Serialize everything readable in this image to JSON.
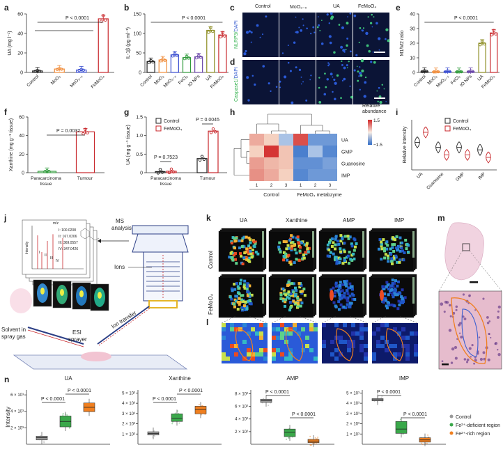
{
  "labels": {
    "a": "a",
    "b": "b",
    "c": "c",
    "d": "d",
    "e": "e",
    "f": "f",
    "g": "g",
    "h": "h",
    "i": "i",
    "j": "j",
    "k": "k",
    "l": "l",
    "m": "m",
    "n": "n"
  },
  "panel_a": {
    "ylabel": "UA (mg l⁻¹)",
    "p": "P < 0.0001",
    "cats": [
      "Control",
      "MoO₃",
      "MoO₃₋ₓ",
      "FeMoO₄"
    ],
    "yticks": [
      "0",
      "20",
      "40",
      "60"
    ],
    "values": [
      1.5,
      3.5,
      2.5,
      55
    ]
  },
  "panel_b": {
    "ylabel": "IL-1β (pg ml⁻¹)",
    "p": "P < 0.0001",
    "cats": [
      "Control",
      "MoO₃",
      "MoO₃₋ₓ",
      "FeCl₃",
      "IO NPs",
      "UA",
      "FeMoO₄"
    ],
    "yticks": [
      "0",
      "50",
      "100",
      "150"
    ],
    "values": [
      28,
      32,
      45,
      38,
      40,
      108,
      96
    ]
  },
  "panel_c": {
    "cols": [
      "Control",
      "MoO₃₋ₓ",
      "UA",
      "FeMoO₄"
    ],
    "ylabel_a": "NLRP3/",
    "ylabel_b": "DAPI"
  },
  "panel_d": {
    "ylabel_a": "Caspase1/",
    "ylabel_b": "DAPI"
  },
  "panel_e": {
    "ylabel": "M1/M2 ratio",
    "p": "P < 0.0001",
    "cats": [
      "Control",
      "MoO₃",
      "MoO₃₋ₓ",
      "FeCl₃",
      "IO NPs",
      "UA",
      "FeMoO₄"
    ],
    "yticks": [
      "0",
      "10",
      "20",
      "30",
      "40"
    ],
    "values": [
      0.8,
      0.6,
      0.7,
      0.6,
      0.7,
      20,
      27
    ]
  },
  "panel_f": {
    "ylabel": "Xanthine (mg g⁻¹ tissue)",
    "p": "P = 0.0032",
    "cats": [
      "Paracarcinoma tissue",
      "Tumour"
    ],
    "yticks": [
      "0",
      "20",
      "40",
      "60"
    ],
    "values": [
      1.5,
      44
    ]
  },
  "panel_g": {
    "ylabel": "UA (mg g⁻¹ tissue)",
    "p1": "P = 0.7523",
    "p2": "P = 0.0045",
    "cats": [
      "Paracarcinoma tissue",
      "Tumour"
    ],
    "yticks": [
      "0",
      "0.5",
      "1.0",
      "1.5"
    ],
    "legend": [
      "Control",
      "FeMoO₄"
    ],
    "control": [
      0.03,
      0.38
    ],
    "femoo4": [
      0.04,
      1.12
    ]
  },
  "panel_h": {
    "title": "Relative abundance",
    "scale_hi": "1.5",
    "scale_lo": "−1.5",
    "rows": [
      "UA",
      "GMP",
      "Guanosine",
      "IMP"
    ],
    "col_nums": [
      "1",
      "2",
      "3",
      "1",
      "2",
      "3"
    ],
    "groups": [
      "Control",
      "FeMoO₄ metabzyme"
    ]
  },
  "panel_i": {
    "ylabel": "Relative intensity",
    "legend": [
      "Control",
      "FeMoO₄"
    ],
    "cats": [
      "UA",
      "Guanosine",
      "GMP",
      "IMP"
    ]
  },
  "panel_j": {
    "ms": "MS analysis",
    "mz": "m/z",
    "intensity": "Intensity",
    "peaks": [
      "I: 100.0208",
      "II: 167.0206",
      "III: 369.0557",
      "IV: 347.0426"
    ],
    "romans": [
      "I",
      "II",
      "III",
      "IV"
    ],
    "ions": "Ions",
    "solvent": "Solvent in spray gas",
    "esi": "ESI sprayer",
    "ion_transfer": "Ion transfer"
  },
  "panel_k": {
    "cols": [
      "UA",
      "Xanthine",
      "AMP",
      "IMP"
    ],
    "rows": [
      "Control",
      "FeMoO₄"
    ]
  },
  "panel_n": {
    "ylabel": "Intensity",
    "plots": [
      {
        "title": "UA",
        "yticks": [
          "2 × 10³",
          "4 × 10³",
          "6 × 10³"
        ],
        "p1": "P < 0.0001",
        "p2": "P < 0.0001"
      },
      {
        "title": "Xanthine",
        "yticks": [
          "1 × 10³",
          "2 × 10³",
          "3 × 10³",
          "4 × 10³",
          "5 × 10³"
        ],
        "p1": "P < 0.0001",
        "p2": "P < 0.0001"
      },
      {
        "title": "AMP",
        "yticks": [
          "2 × 10²",
          "4 × 10²",
          "6 × 10²",
          "8 × 10²"
        ],
        "p1": "P < 0.0001",
        "p2": "P < 0.0001"
      },
      {
        "title": "IMP",
        "yticks": [
          "1 × 10³",
          "2 × 10³",
          "3 × 10³",
          "4 × 10³",
          "5 × 10³"
        ],
        "p1": "P < 0.0001",
        "p2": "P < 0.0001"
      }
    ],
    "legend": [
      "Control",
      "Fe²⁺-deficient region",
      "Fe²⁺-rich region"
    ],
    "colors": {
      "control": "#9a9a9a",
      "deficient": "#3aa84a",
      "rich": "#f07f1f"
    }
  },
  "colors": {
    "control": "#222222",
    "moo3": "#f08c3a",
    "moox": "#3a4ed0",
    "fecl3": "#2e9a3a",
    "ionp": "#6a46a8",
    "ua": "#8a8a1e",
    "femoo4": "#c8262a"
  }
}
